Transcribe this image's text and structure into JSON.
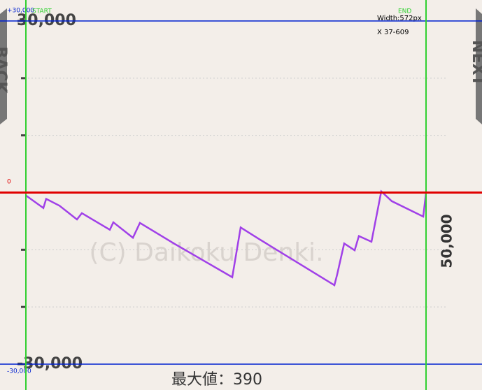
{
  "chart_data": {
    "type": "line",
    "x": [
      37,
      62,
      66,
      85,
      110,
      117,
      157,
      162,
      190,
      200,
      250,
      332,
      344,
      370,
      478,
      482,
      492,
      507,
      513,
      531,
      545,
      560,
      605,
      609
    ],
    "values": [
      -500,
      -2700,
      -1100,
      -2300,
      -4700,
      -3600,
      -6500,
      -5200,
      -7900,
      -5300,
      -9000,
      -14800,
      -6100,
      -8100,
      -16200,
      -14300,
      -8900,
      -10100,
      -7600,
      -8600,
      200,
      -1500,
      -4200,
      0
    ],
    "color": "#a040e8",
    "xlim": [
      37,
      609
    ],
    "ylim": [
      -30000,
      30000
    ],
    "yticks": [
      {
        "value": 30000,
        "label": "30,000"
      },
      {
        "value": -30000,
        "label": "-30,000"
      }
    ],
    "grid_lines": [
      20000,
      10000,
      -10000,
      -20000
    ],
    "grid": true,
    "right_label": "50,000",
    "watermark": "(C) Daikoku Denki.",
    "max_label": "最大値：390"
  },
  "overlay": {
    "top_label": "+30,000",
    "start": "START",
    "end": "END",
    "width": "Width:572px",
    "x_range": "X 37-609",
    "zero": "0",
    "bottom_label": "-30,000"
  },
  "nav": {
    "back": "BACK",
    "next": "NEXT"
  }
}
